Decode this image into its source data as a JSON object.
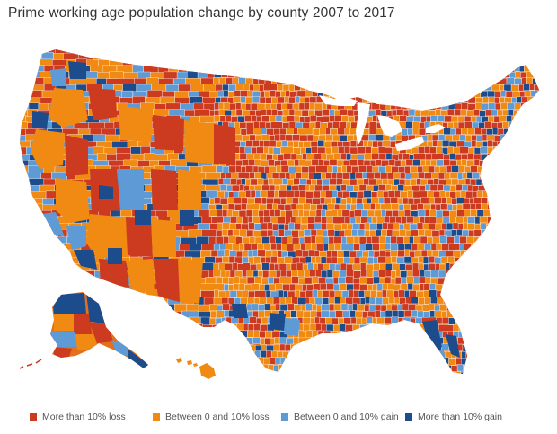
{
  "title": "Prime working age population change by county 2007 to 2017",
  "legend": {
    "items": [
      {
        "label": "More than 10% loss",
        "color": "#cc3a1f"
      },
      {
        "label": "Between 0 and 10% loss",
        "color": "#f08a12"
      },
      {
        "label": "Between 0 and 10% gain",
        "color": "#5e9bd6"
      },
      {
        "label": "More than 10% gain",
        "color": "#1c4c8c"
      }
    ]
  }
}
